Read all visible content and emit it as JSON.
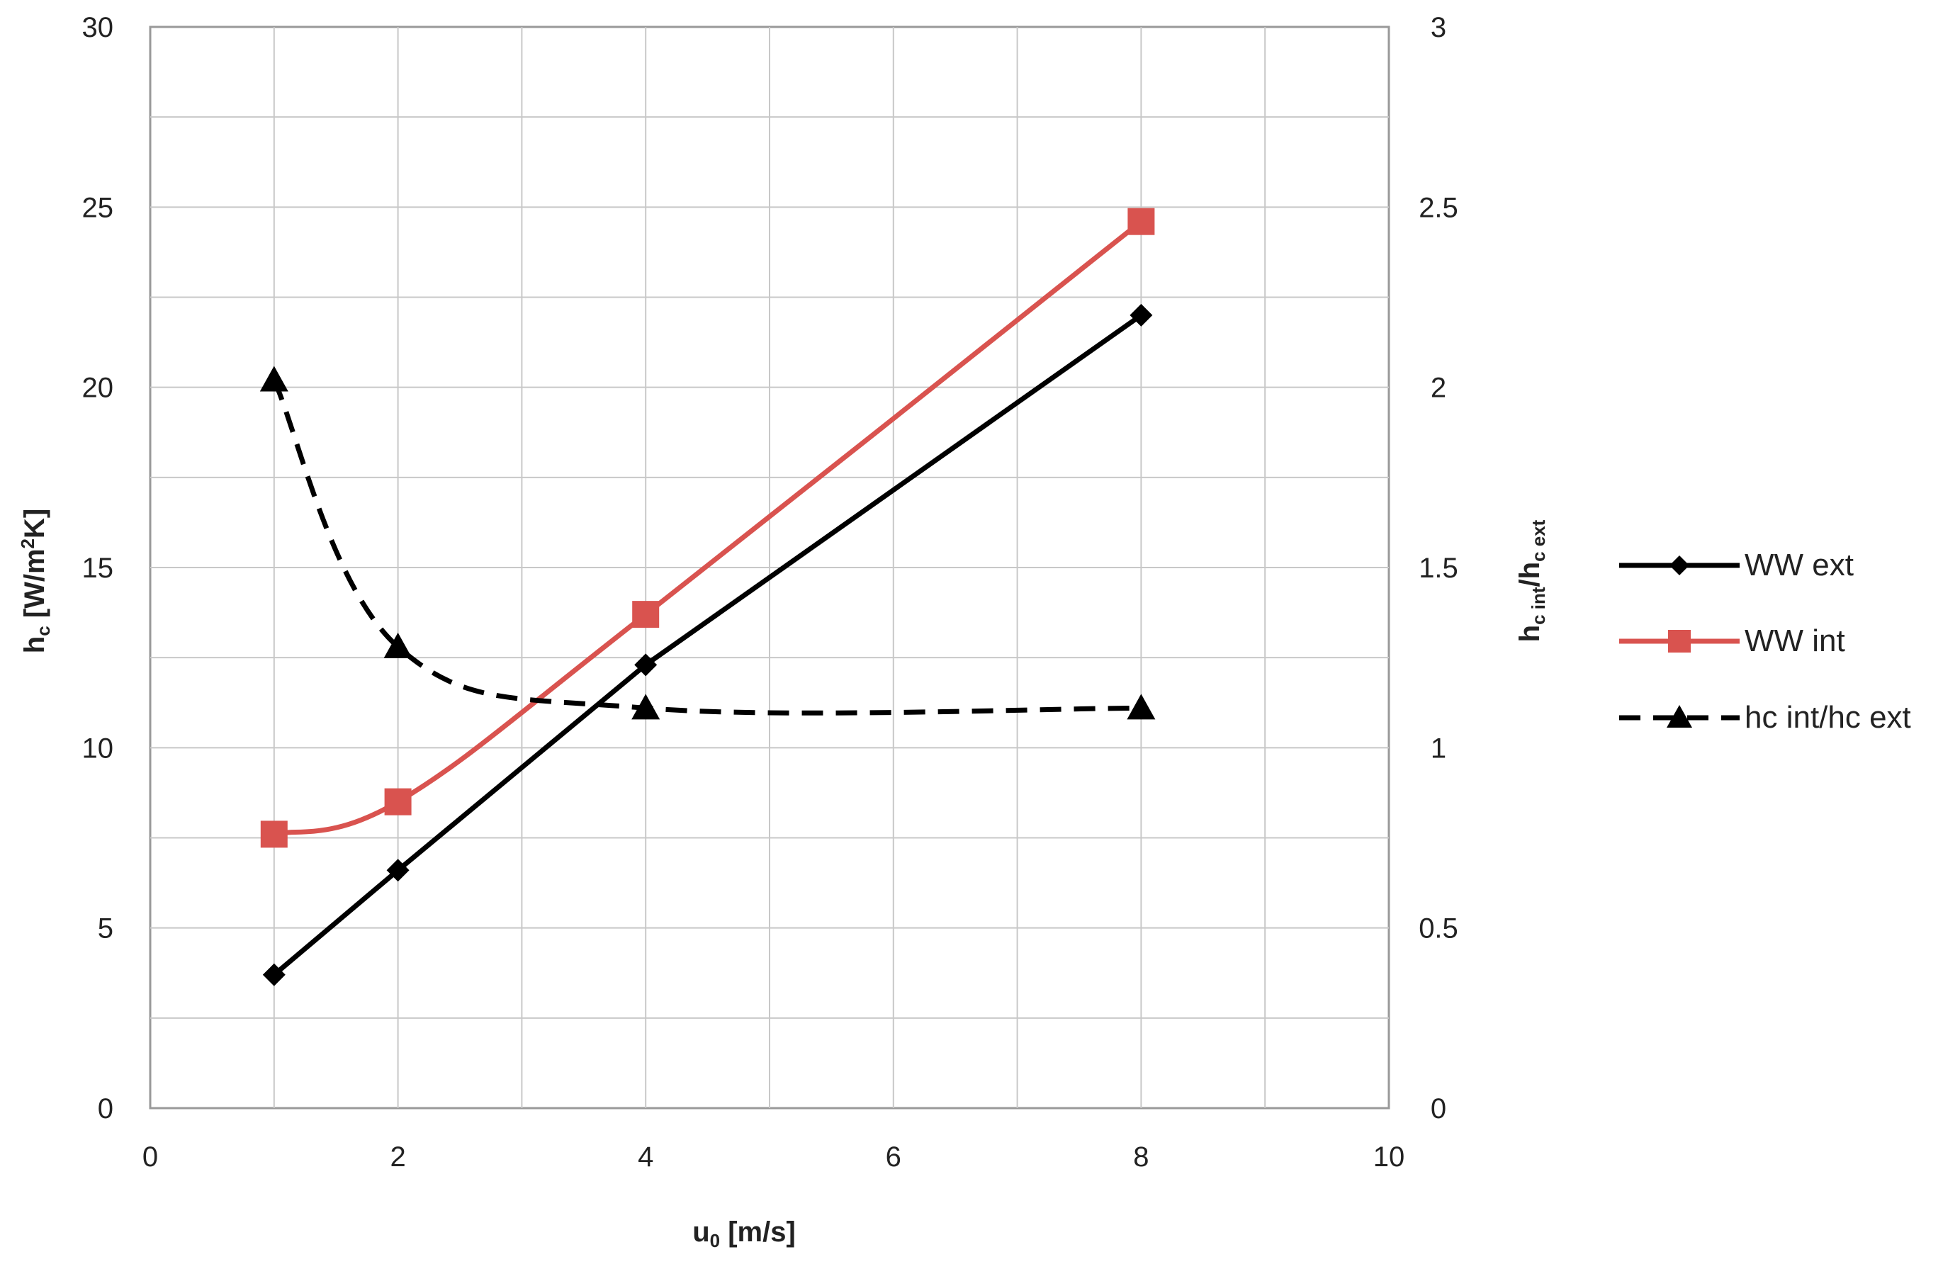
{
  "chart_data": {
    "type": "line",
    "title": "",
    "xlabel": {
      "main": "u",
      "sub": "0",
      "rest": " [m/s]"
    },
    "ylabel": {
      "main": "h",
      "sub": "c",
      "mid": " [W/m",
      "sup": "2",
      "rest": "K]"
    },
    "y2label": {
      "main1": "h",
      "sub1": "c int",
      "mid": "/h",
      "sub2": "c ext"
    },
    "xlim": [
      0,
      10
    ],
    "ylim": [
      0,
      30
    ],
    "y2lim": [
      0,
      3
    ],
    "x_ticks": [
      "0",
      "2",
      "4",
      "6",
      "8",
      "10"
    ],
    "y_ticks": [
      "0",
      "5",
      "10",
      "15",
      "20",
      "25",
      "30"
    ],
    "y2_ticks": [
      "0",
      "0.5",
      "1",
      "1.5",
      "2",
      "2.5",
      "3"
    ],
    "grid": true,
    "legend_position": "right",
    "series": [
      {
        "name": "WW ext",
        "axis": "left",
        "color": "#000000",
        "marker": "diamond",
        "dash": false,
        "smooth": false,
        "points": [
          [
            1,
            3.7
          ],
          [
            2,
            6.6
          ],
          [
            4,
            12.3
          ],
          [
            8,
            22.0
          ]
        ]
      },
      {
        "name": "WW int",
        "axis": "left",
        "color": "#d9534f",
        "marker": "square",
        "dash": false,
        "smooth": true,
        "points": [
          [
            1,
            7.6
          ],
          [
            2,
            8.5
          ],
          [
            4,
            13.7
          ],
          [
            8,
            24.6
          ]
        ]
      },
      {
        "name": "hc int/hc ext",
        "axis": "right",
        "color": "#000000",
        "marker": "triangle",
        "dash": true,
        "smooth": true,
        "points": [
          [
            1,
            2.02
          ],
          [
            2,
            1.28
          ],
          [
            4,
            1.11
          ],
          [
            8,
            1.11
          ]
        ]
      }
    ]
  }
}
